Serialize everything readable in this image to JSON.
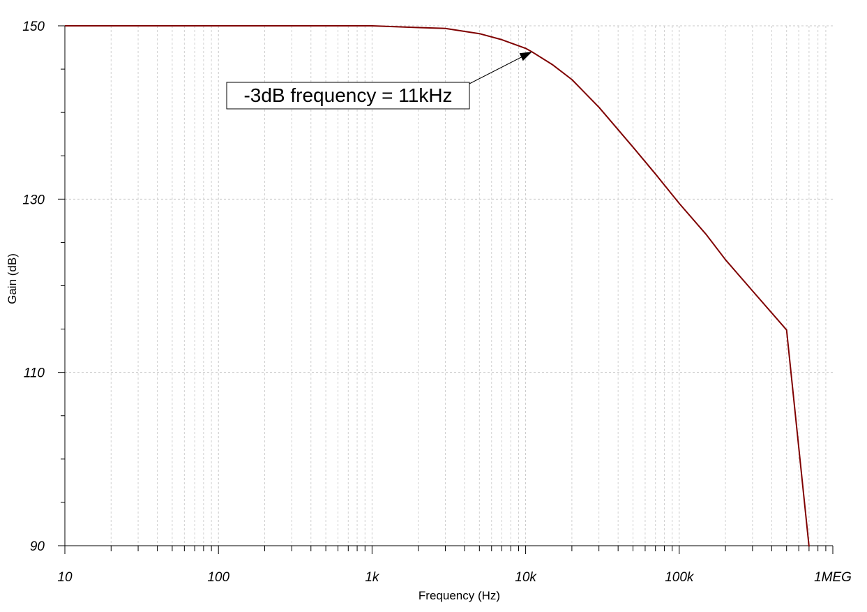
{
  "chart_data": {
    "type": "line",
    "xlabel": "Frequency (Hz)",
    "ylabel": "Gain (dB)",
    "xscale": "log",
    "xlim": [
      10,
      1000000
    ],
    "ylim": [
      90,
      150
    ],
    "grid": true,
    "x_ticks": [
      {
        "value": 10,
        "label": "10"
      },
      {
        "value": 100,
        "label": "100"
      },
      {
        "value": 1000,
        "label": "1k"
      },
      {
        "value": 10000,
        "label": "10k"
      },
      {
        "value": 100000,
        "label": "100k"
      },
      {
        "value": 1000000,
        "label": "1MEG"
      }
    ],
    "y_ticks": [
      {
        "value": 150,
        "label": "150"
      },
      {
        "value": 130,
        "label": "130"
      },
      {
        "value": 110,
        "label": "110"
      },
      {
        "value": 90,
        "label": "90"
      }
    ],
    "series": [
      {
        "color": "#7f0000",
        "x": [
          10,
          100,
          1000,
          2000,
          3000,
          5000,
          7000,
          10000,
          11000,
          15000,
          20000,
          30000,
          50000,
          70000,
          100000,
          150000,
          200000,
          300000,
          500000,
          700000
        ],
        "y": [
          150,
          150,
          150,
          149.8,
          149.7,
          149.1,
          148.4,
          147.4,
          147.0,
          145.5,
          143.8,
          140.6,
          136.0,
          132.9,
          129.5,
          125.9,
          123.0,
          119.4,
          114.9,
          89.9
        ]
      }
    ],
    "annotations": [
      {
        "text": "-3dB frequency = 11kHz",
        "target_x": 11000,
        "target_y": 147.0
      }
    ]
  }
}
